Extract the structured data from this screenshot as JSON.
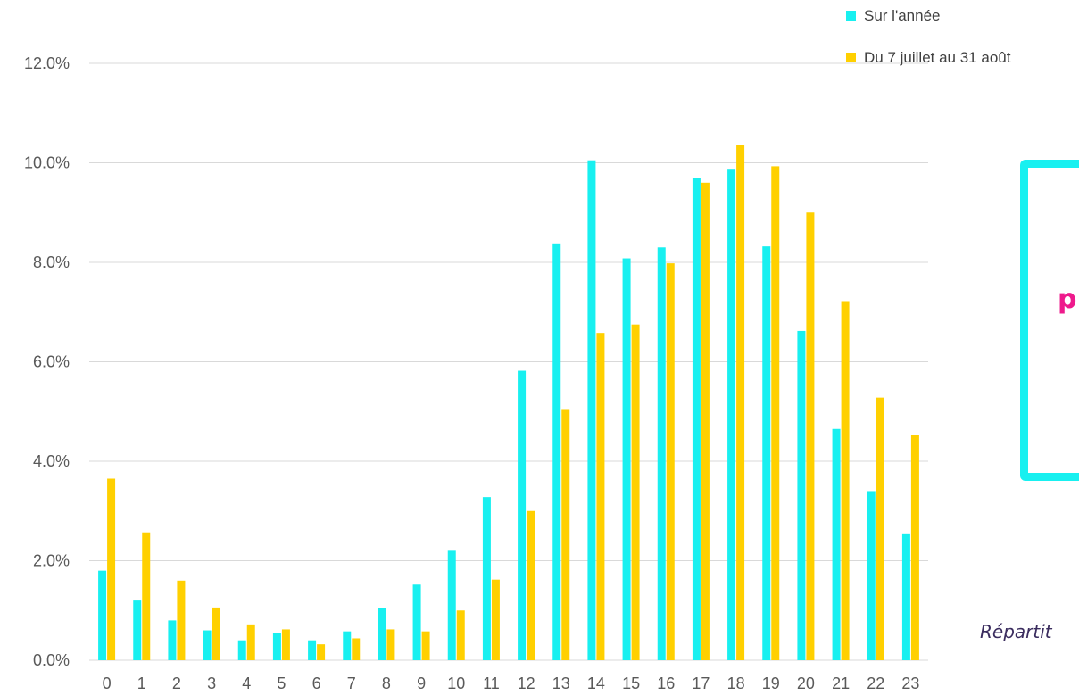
{
  "chart_data": {
    "type": "bar",
    "categories": [
      "0",
      "1",
      "2",
      "3",
      "4",
      "5",
      "6",
      "7",
      "8",
      "9",
      "10",
      "11",
      "12",
      "13",
      "14",
      "15",
      "16",
      "17",
      "18",
      "19",
      "20",
      "21",
      "22",
      "23"
    ],
    "series": [
      {
        "name": "Sur l'année",
        "color": "#18f0f0",
        "values": [
          1.8,
          1.2,
          0.8,
          0.6,
          0.4,
          0.55,
          0.4,
          0.58,
          1.05,
          1.52,
          2.2,
          3.28,
          5.82,
          8.38,
          10.05,
          8.08,
          8.3,
          9.7,
          9.88,
          8.32,
          6.62,
          4.65,
          3.4,
          2.55
        ]
      },
      {
        "name": "Du 7 juillet au 31 août",
        "color": "#ffd000",
        "values": [
          3.65,
          2.57,
          1.6,
          1.06,
          0.72,
          0.62,
          0.32,
          0.44,
          0.62,
          0.58,
          1.0,
          1.62,
          3.0,
          5.05,
          6.58,
          6.75,
          7.98,
          9.6,
          10.35,
          9.93,
          9.0,
          7.22,
          5.28,
          4.52
        ]
      }
    ],
    "ylim": [
      0,
      12
    ],
    "y_ticks": [
      "0.0%",
      "2.0%",
      "4.0%",
      "6.0%",
      "8.0%",
      "10.0%",
      "12.0%"
    ],
    "grid": true,
    "legend": "top-right",
    "title": "",
    "xlabel": "",
    "ylabel": ""
  },
  "callout": {
    "text": "p"
  },
  "caption": {
    "text": "Répartit"
  }
}
